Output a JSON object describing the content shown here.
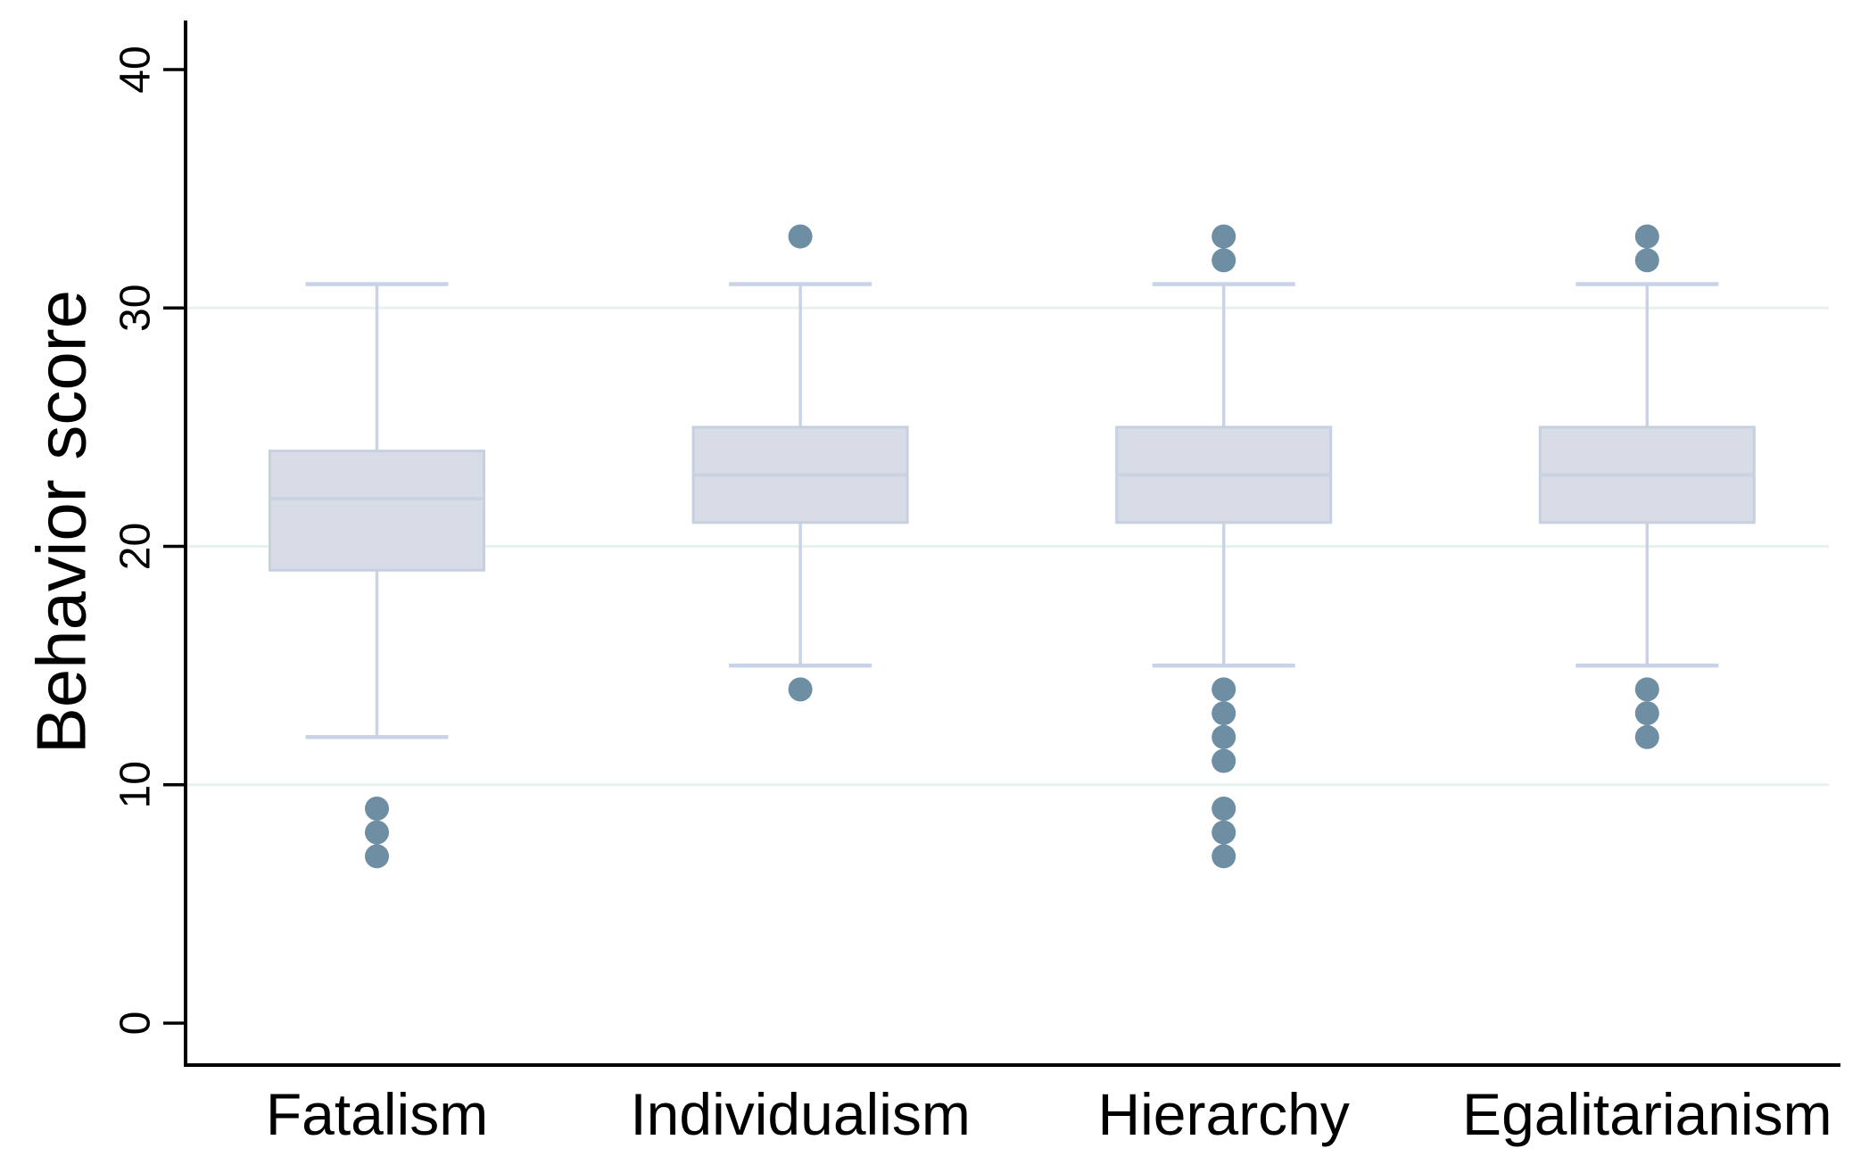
{
  "chart_data": {
    "type": "box",
    "title": "",
    "ylabel": "Behavior score",
    "xlabel": "",
    "categories": [
      "Fatalism",
      "Individualism",
      "Hierarchy",
      "Egalitarianism"
    ],
    "y_axis": {
      "min": 0,
      "max": 40,
      "ticks": [
        0,
        10,
        20,
        30,
        40
      ],
      "gridlines_at": [
        10,
        20,
        30
      ],
      "grid": "horizontal-only",
      "tick_label_rotation_deg": -90
    },
    "legend": "none",
    "series": [
      {
        "category": "Fatalism",
        "whisker_low": 12,
        "q1": 19,
        "median": 22,
        "q3": 24,
        "whisker_high": 31,
        "outliers_low": [
          9,
          8,
          7
        ],
        "outliers_high": []
      },
      {
        "category": "Individualism",
        "whisker_low": 15,
        "q1": 21,
        "median": 23,
        "q3": 25,
        "whisker_high": 31,
        "outliers_low": [
          14
        ],
        "outliers_high": [
          33
        ]
      },
      {
        "category": "Hierarchy",
        "whisker_low": 15,
        "q1": 21,
        "median": 23,
        "q3": 25,
        "whisker_high": 31,
        "outliers_low": [
          14,
          13,
          12,
          11,
          9,
          8,
          7
        ],
        "outliers_high": [
          33,
          32
        ]
      },
      {
        "category": "Egalitarianism",
        "whisker_low": 15,
        "q1": 21,
        "median": 23,
        "q3": 25,
        "whisker_high": 31,
        "outliers_low": [
          14,
          13,
          12
        ],
        "outliers_high": [
          33,
          32
        ]
      }
    ],
    "colors": {
      "background": "#ffffff",
      "box_fill": "#d7dce6",
      "box_border": "#c7d0e0",
      "median_line": "#cbd3e3",
      "whisker": "#c9d3e7",
      "outlier_dot": "#6e8ea4",
      "gridline": "#e7f1ee",
      "axis": "#000000",
      "text": "#000000"
    }
  }
}
